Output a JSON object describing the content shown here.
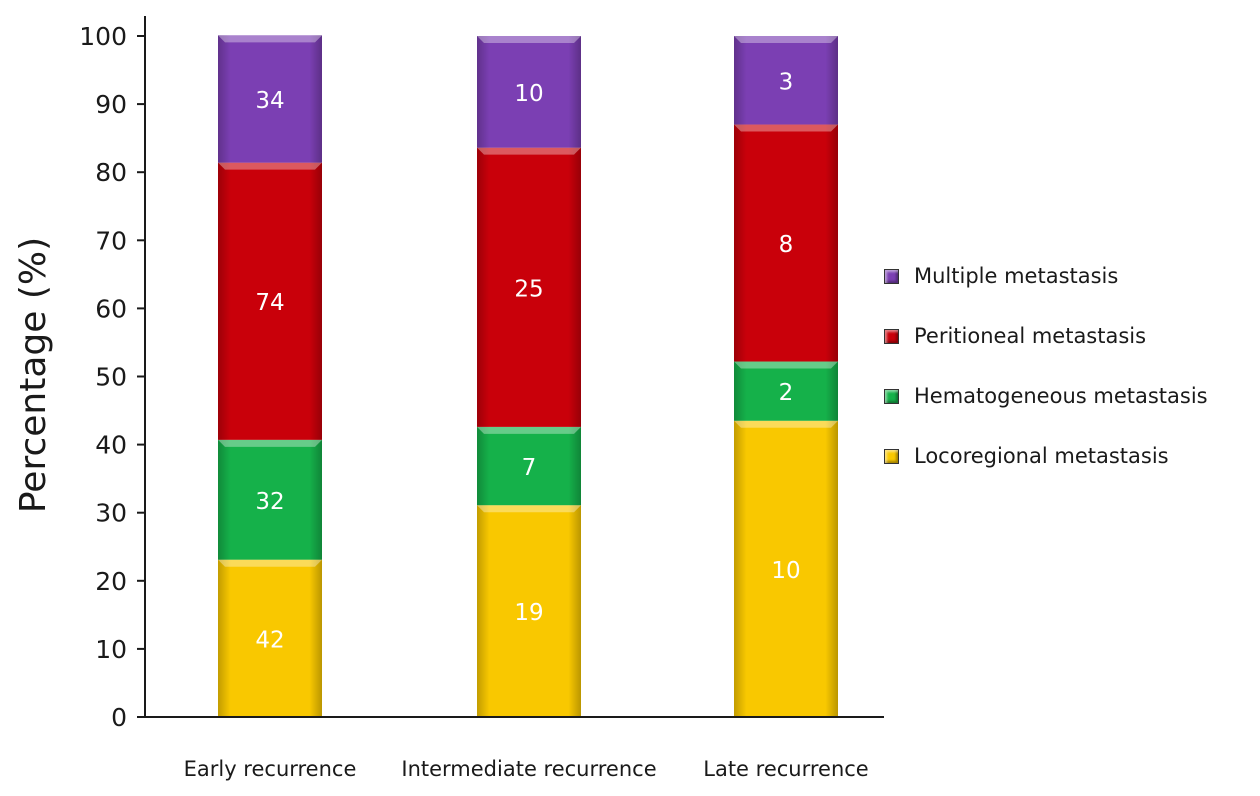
{
  "chart_data": {
    "type": "bar",
    "stacked": true,
    "title": "",
    "xlabel": "",
    "ylabel": "Percentage (%)",
    "ylim": [
      0,
      100
    ],
    "yticks": [
      0,
      10,
      20,
      30,
      40,
      50,
      60,
      70,
      80,
      90,
      100
    ],
    "grid": false,
    "legend_position": "right",
    "categories": [
      "Early recurrence",
      "Intermediate recurrence",
      "Late  recurrence"
    ],
    "series": [
      {
        "name": "Locoregional metastasis",
        "color": "#f9c800",
        "percent": [
          23.1,
          31.1,
          43.5
        ],
        "labels": [
          "42",
          "19",
          "10"
        ]
      },
      {
        "name": "Hematogeneous metastasis",
        "color": "#15b14a",
        "percent": [
          17.6,
          11.5,
          8.7
        ],
        "labels": [
          "32",
          "7",
          "2"
        ]
      },
      {
        "name": "Peritioneal metastasis",
        "color": "#c9000a",
        "percent": [
          40.7,
          41.0,
          34.8
        ],
        "labels": [
          "74",
          "25",
          "8"
        ]
      },
      {
        "name": "Multiple metastasis",
        "color": "#7b3fb3",
        "percent": [
          18.7,
          16.4,
          13.0
        ],
        "labels": [
          "34",
          "10",
          "3"
        ]
      }
    ],
    "legend_order": [
      "Multiple metastasis",
      "Peritioneal metastasis",
      "Hematogeneous metastasis",
      "Locoregional metastasis"
    ]
  }
}
